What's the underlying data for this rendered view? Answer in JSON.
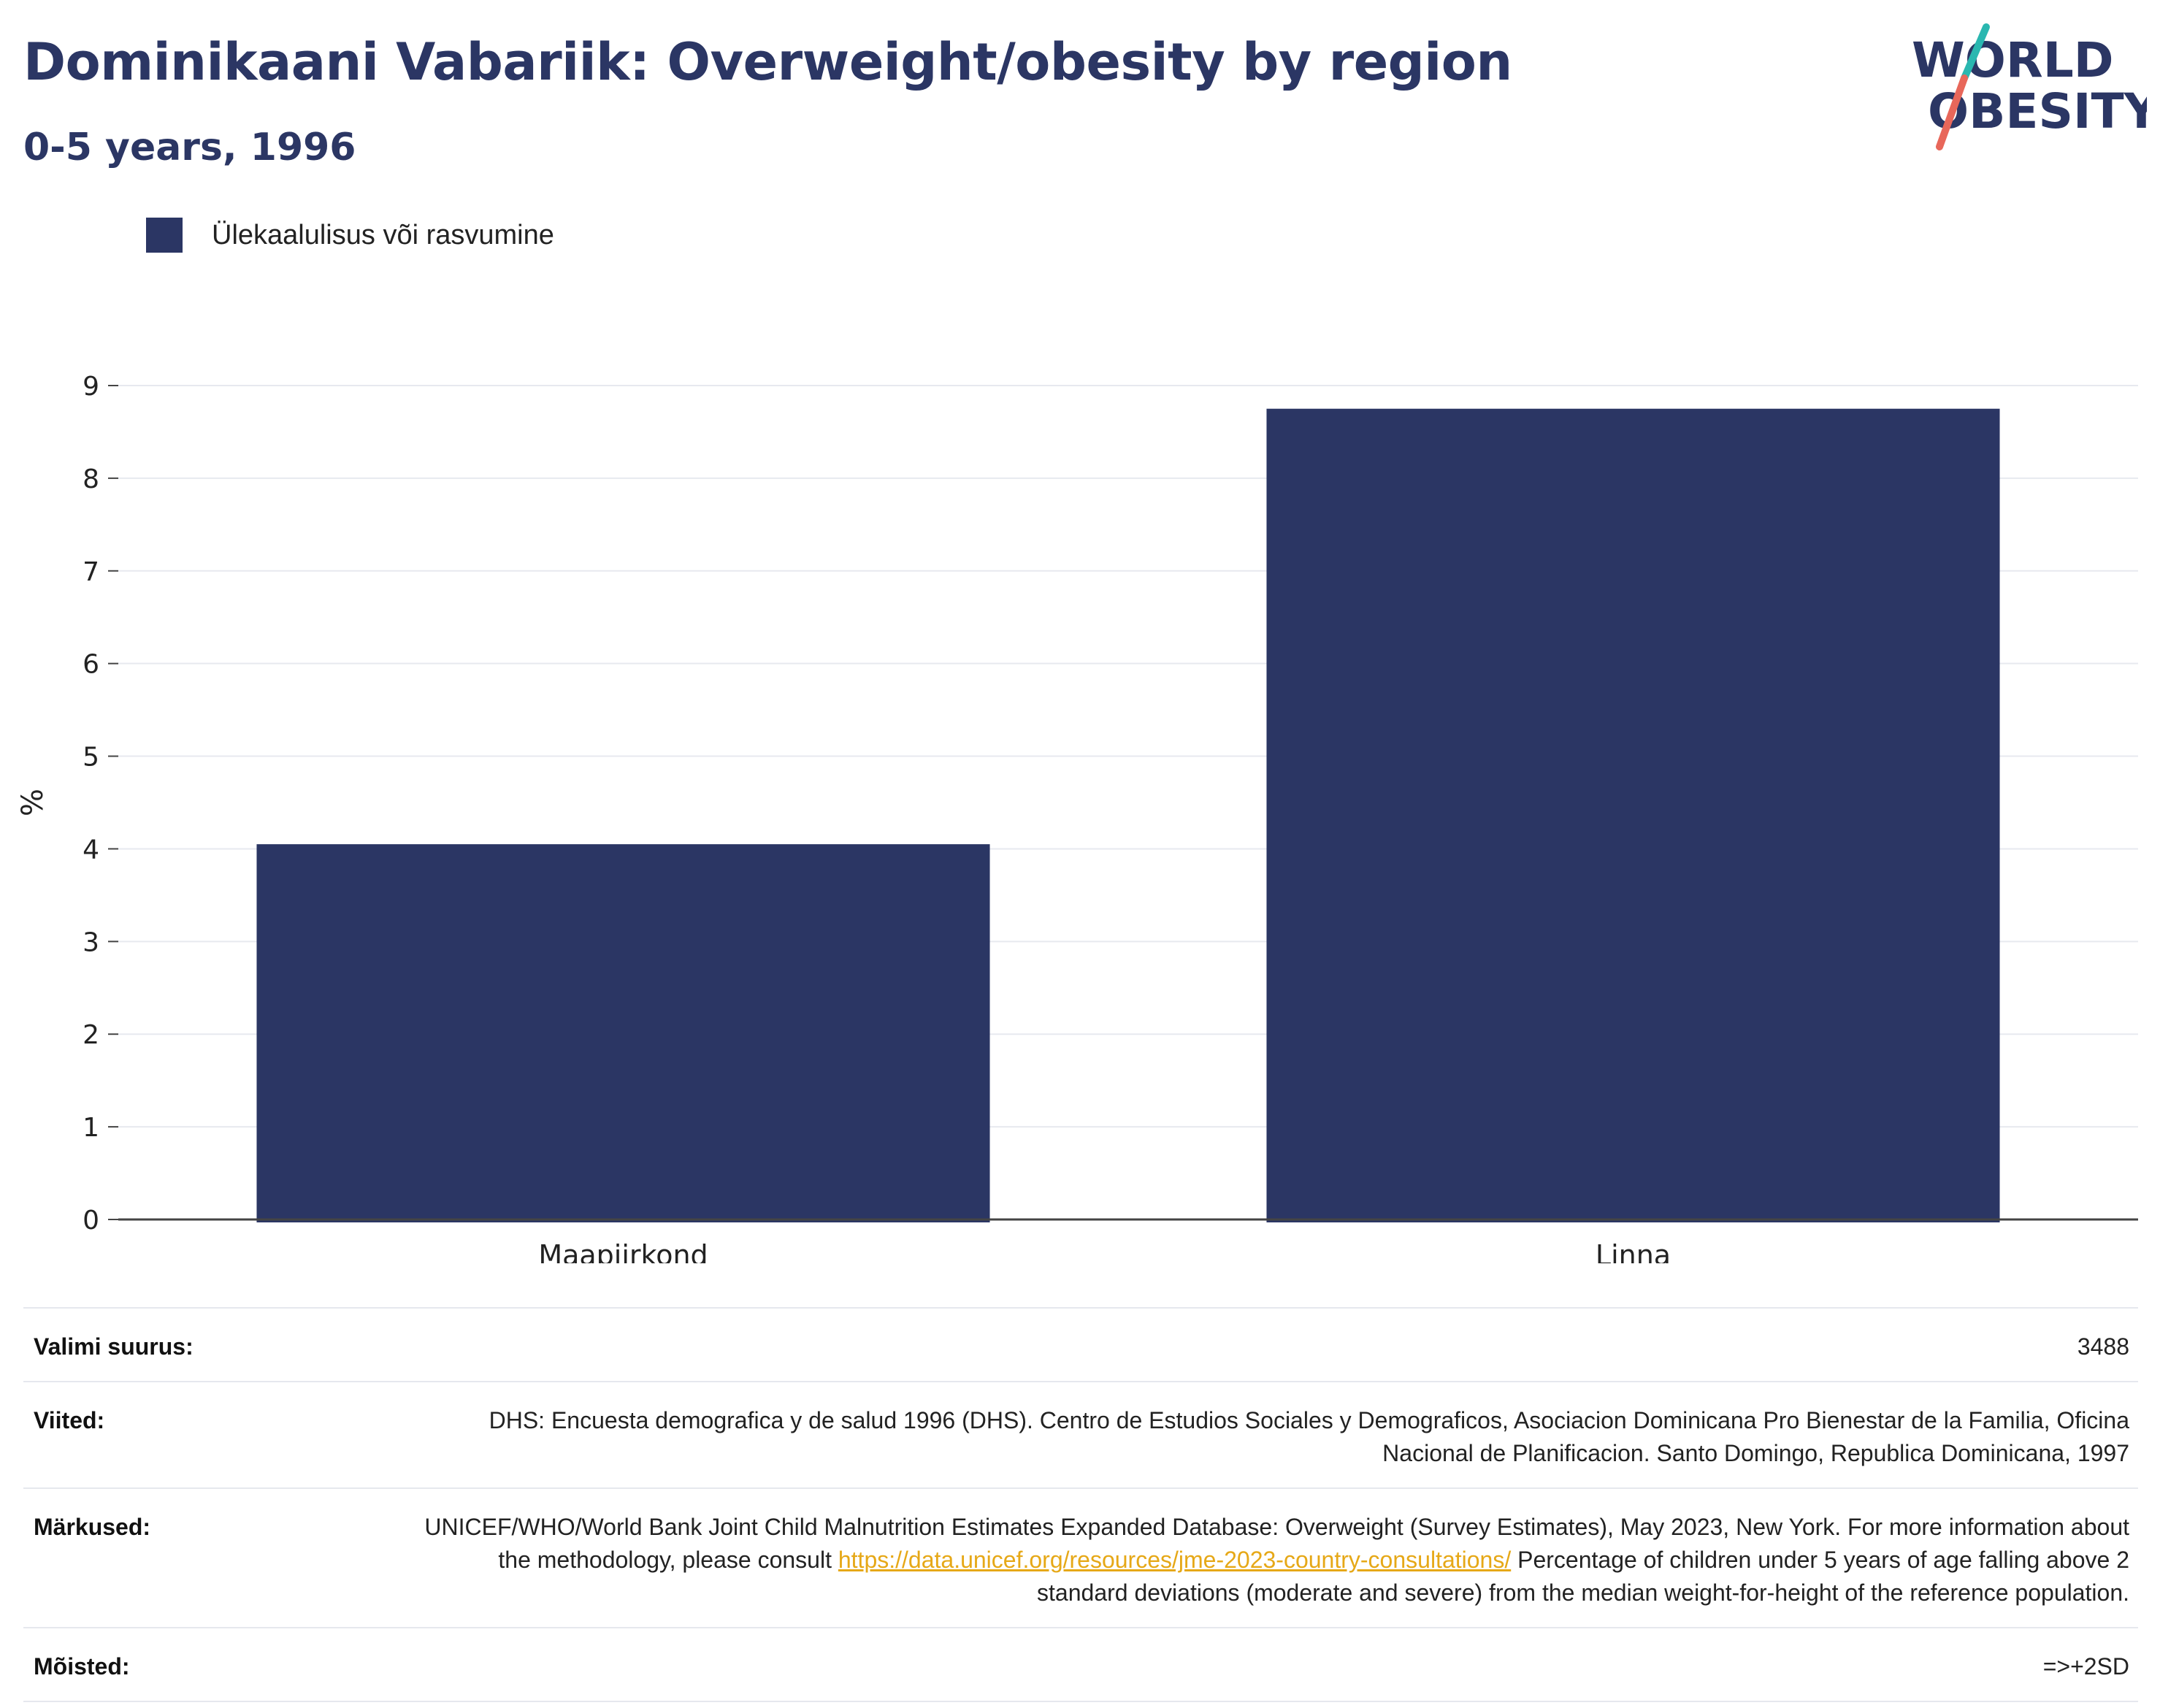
{
  "header": {
    "title": "Dominikaani Vabariik: Overweight/obesity by region",
    "subtitle": "0-5 years, 1996"
  },
  "logo": {
    "line1": "WORLD",
    "line2": "OBESITY",
    "colors": {
      "text": "#2b3664",
      "slash_top": "#2ab7b0",
      "slash_bottom": "#e8675a"
    }
  },
  "legend": {
    "items": [
      {
        "label": "Ülekaalulisus või rasvumine",
        "color": "#2b3664"
      }
    ]
  },
  "chart_data": {
    "type": "bar",
    "categories": [
      "Maapiirkond",
      "Linna"
    ],
    "series": [
      {
        "name": "Ülekaalulisus või rasvumine",
        "values": [
          4.05,
          8.75
        ],
        "color": "#2b3664"
      }
    ],
    "ylabel": "%",
    "xlabel": "",
    "ylim": [
      0,
      9
    ],
    "yticks": [
      0,
      1,
      2,
      3,
      4,
      5,
      6,
      7,
      8,
      9
    ],
    "grid": true,
    "legend_position": "top-left"
  },
  "info": {
    "sample": {
      "label": "Valimi suurus:",
      "value": "3488"
    },
    "references": {
      "label": "Viited:",
      "value": "DHS: Encuesta demografica y de salud 1996 (DHS). Centro de Estudios Sociales y Demograficos, Asociacion Dominicana Pro Bienestar de la Familia, Oficina Nacional de Planificacion. Santo Domingo, Republica Dominicana, 1997"
    },
    "notes": {
      "label": "Märkused:",
      "text_before": "UNICEF/WHO/World Bank Joint Child Malnutrition Estimates Expanded Database: Overweight (Survey Estimates), May 2023, New York. For more information about the methodology, please consult ",
      "link": "https://data.unicef.org/resources/jme-2023-country-consultations/",
      "text_after": " Percentage of children under 5 years of age falling above 2 standard deviations (moderate and severe) from the median weight-for-height of the reference population."
    },
    "definitions": {
      "label": "Mõisted:",
      "value": "=>+2SD"
    }
  }
}
